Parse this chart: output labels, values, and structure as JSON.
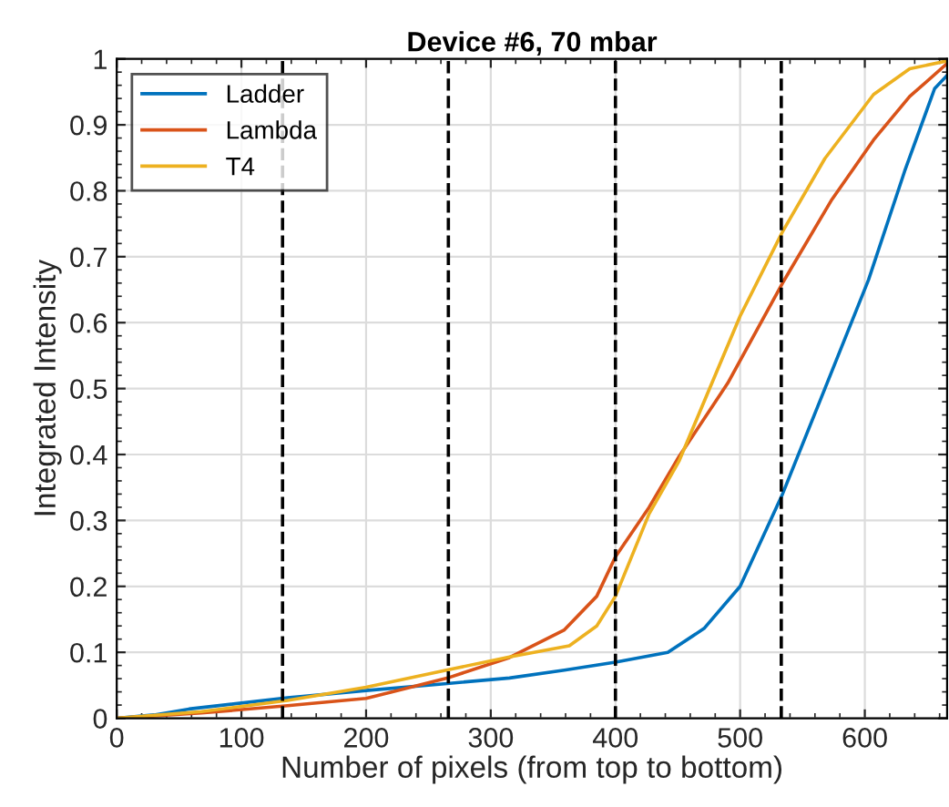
{
  "chart_data": {
    "type": "line",
    "title": "Device #6, 70 mbar",
    "xlabel": "Number of pixels (from top to bottom)",
    "ylabel": "Integrated Intensity",
    "xlim": [
      0,
      666
    ],
    "ylim": [
      0,
      1
    ],
    "xticks": [
      0,
      100,
      200,
      300,
      400,
      500,
      600
    ],
    "yticks": [
      0,
      0.1,
      0.2,
      0.3,
      0.4,
      0.5,
      0.6,
      0.7,
      0.8,
      0.9,
      1
    ],
    "grid": true,
    "legend": "top left",
    "line_style": "solid",
    "marker": "none",
    "ref_lines": [
      {
        "axis": "x",
        "value": 133,
        "color": "#000000",
        "line_style": "dashed"
      },
      {
        "axis": "x",
        "value": 266,
        "color": "#000000",
        "line_style": "dashed"
      },
      {
        "axis": "x",
        "value": 400,
        "color": "#000000",
        "line_style": "dashed"
      },
      {
        "axis": "x",
        "value": 533,
        "color": "#000000",
        "line_style": "dashed"
      }
    ],
    "series": [
      {
        "name": "Ladder",
        "color": "#0072bd",
        "x": [
          0,
          30,
          58,
          137,
          200,
          267,
          315,
          359,
          400,
          442,
          471,
          500,
          534,
          568,
          603,
          632,
          656,
          666
        ],
        "values": [
          0,
          0.005,
          0.014,
          0.031,
          0.042,
          0.053,
          0.061,
          0.073,
          0.085,
          0.1,
          0.136,
          0.2,
          0.34,
          0.5,
          0.665,
          0.83,
          0.955,
          0.975
        ]
      },
      {
        "name": "Lambda",
        "color": "#d95319",
        "x": [
          0,
          68,
          137,
          200,
          267,
          315,
          359,
          385,
          400,
          427,
          451,
          490,
          534,
          573,
          607,
          636,
          666
        ],
        "values": [
          0,
          0.008,
          0.019,
          0.03,
          0.062,
          0.092,
          0.134,
          0.185,
          0.245,
          0.32,
          0.397,
          0.508,
          0.66,
          0.785,
          0.877,
          0.943,
          0.993
        ]
      },
      {
        "name": "T4",
        "color": "#edb120",
        "x": [
          0,
          68,
          137,
          200,
          267,
          315,
          363,
          385,
          400,
          427,
          451,
          500,
          534,
          568,
          607,
          636,
          666
        ],
        "values": [
          0,
          0.01,
          0.027,
          0.047,
          0.074,
          0.093,
          0.11,
          0.14,
          0.185,
          0.31,
          0.39,
          0.61,
          0.738,
          0.849,
          0.946,
          0.985,
          0.997
        ]
      }
    ]
  }
}
